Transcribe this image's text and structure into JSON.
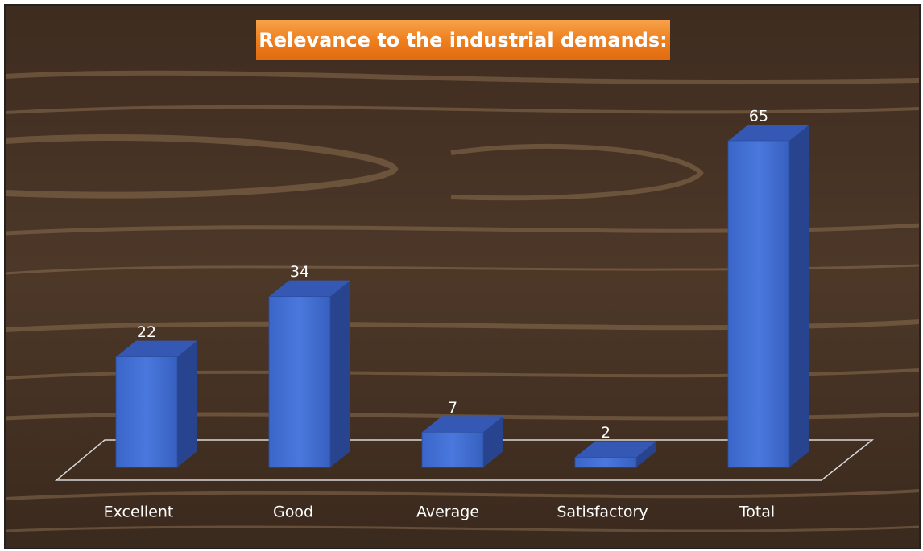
{
  "chart_data": {
    "type": "bar3d",
    "title": "Relevance to the industrial demands:",
    "categories": [
      "Excellent",
      "Good",
      "Average",
      "Satisfactory",
      "Total"
    ],
    "values": [
      22,
      34,
      7,
      2,
      65
    ],
    "color": "#3a66c8"
  }
}
